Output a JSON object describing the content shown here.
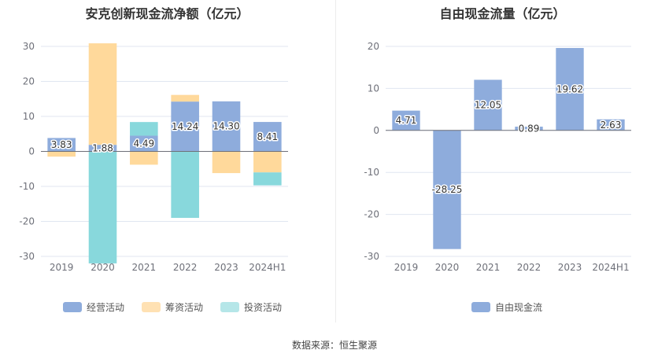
{
  "chart_data": [
    {
      "type": "bar",
      "stacked": true,
      "title": "安克创新现金流净额（亿元）",
      "categories": [
        "2019",
        "2020",
        "2021",
        "2022",
        "2023",
        "2024H1"
      ],
      "ylim": [
        -30,
        30
      ],
      "yticks": [
        -30,
        -20,
        -10,
        0,
        10,
        20,
        30
      ],
      "grid": true,
      "legend_position": "bottom",
      "series": [
        {
          "name": "经营活动",
          "color": "#8eacdc",
          "values": [
            3.83,
            1.88,
            4.49,
            14.24,
            14.3,
            8.41
          ],
          "labels": [
            "3.83",
            "1.88",
            "4.49",
            "14.24",
            "14.30",
            "8.41"
          ]
        },
        {
          "name": "筹资活动",
          "color": "#ffd99b",
          "values": [
            -1.5,
            29.0,
            -3.8,
            1.9,
            -6.2,
            -6.0
          ]
        },
        {
          "name": "投资活动",
          "color": "#88d8dc",
          "values": [
            0.0,
            -32.0,
            3.9,
            -19.0,
            0.0,
            -3.7
          ]
        }
      ]
    },
    {
      "type": "bar",
      "title": "自由现金流量（亿元）",
      "categories": [
        "2019",
        "2020",
        "2021",
        "2022",
        "2023",
        "2024H1"
      ],
      "ylim": [
        -30,
        20
      ],
      "yticks": [
        -30,
        -20,
        -10,
        0,
        10,
        20
      ],
      "grid": true,
      "legend_position": "bottom",
      "series": [
        {
          "name": "自由现金流",
          "color": "#8eacdc",
          "values": [
            4.71,
            -28.25,
            12.05,
            0.89,
            19.62,
            2.63
          ],
          "labels": [
            "4.71",
            "-28.25",
            "12.05",
            "0.89",
            "19.62",
            "2.63"
          ]
        }
      ]
    }
  ],
  "source_text": "数据来源：恒生聚源"
}
